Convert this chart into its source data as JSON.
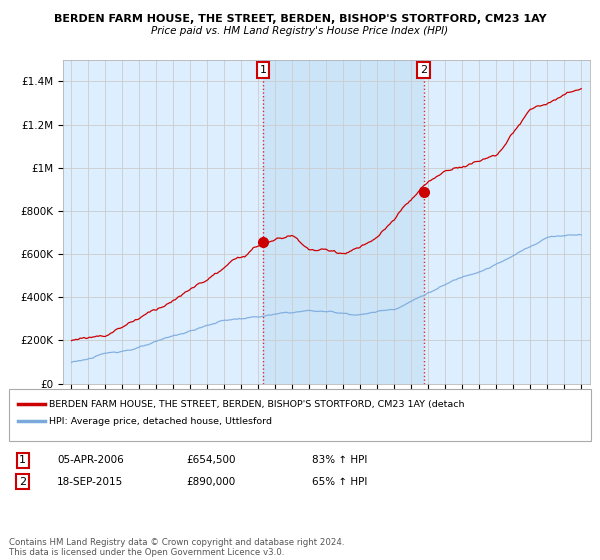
{
  "title": "BERDEN FARM HOUSE, THE STREET, BERDEN, BISHOP'S STORTFORD, CM23 1AY",
  "subtitle": "Price paid vs. HM Land Registry's House Price Index (HPI)",
  "ylim": [
    0,
    1500000
  ],
  "yticks": [
    0,
    200000,
    400000,
    600000,
    800000,
    1000000,
    1200000,
    1400000
  ],
  "legend_line1": "BERDEN FARM HOUSE, THE STREET, BERDEN, BISHOP'S STORTFORD, CM23 1AY (detach",
  "legend_line2": "HPI: Average price, detached house, Uttlesford",
  "annotation1_date": "05-APR-2006",
  "annotation1_price": "£654,500",
  "annotation1_hpi": "83% ↑ HPI",
  "annotation2_date": "18-SEP-2015",
  "annotation2_price": "£890,000",
  "annotation2_hpi": "65% ↑ HPI",
  "footer": "Contains HM Land Registry data © Crown copyright and database right 2024.\nThis data is licensed under the Open Government Licence v3.0.",
  "sale_color": "#cc0000",
  "hpi_color": "#7aaadd",
  "background_chart": "#ddeeff",
  "background_highlight": "#cce4f8",
  "grid_color": "#cccccc",
  "sale1_t": 2006.27,
  "sale1_y": 654500,
  "sale2_t": 2015.72,
  "sale2_y": 890000,
  "xmin": 1995,
  "xmax": 2025
}
